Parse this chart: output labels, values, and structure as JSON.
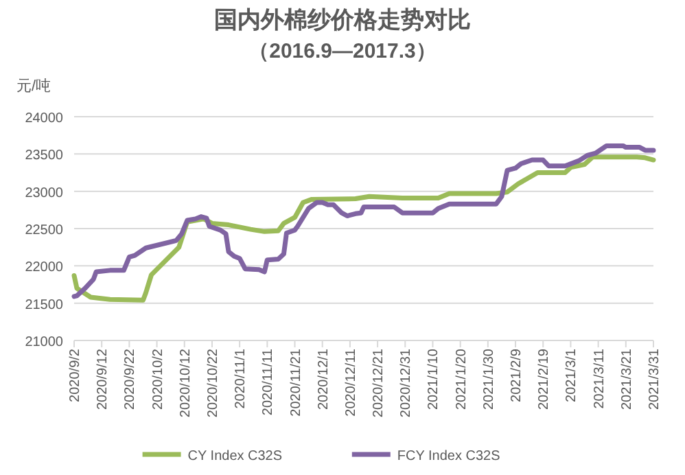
{
  "chart_data": {
    "type": "line",
    "title": "国内外棉纱价格走势对比",
    "subtitle": "（2016.9—2017.3）",
    "ylabel": "元/吨",
    "xlim": [
      "2020-09-02",
      "2021-03-31"
    ],
    "xticks": [
      {
        "value": "2020-09-02",
        "label": "2020/9/2"
      },
      {
        "value": "2020-09-12",
        "label": "2020/9/12"
      },
      {
        "value": "2020-09-22",
        "label": "2020/9/22"
      },
      {
        "value": "2020-10-02",
        "label": "2020/10/2"
      },
      {
        "value": "2020-10-12",
        "label": "2020/10/12"
      },
      {
        "value": "2020-10-22",
        "label": "2020/10/22"
      },
      {
        "value": "2020-11-01",
        "label": "2020/11/1"
      },
      {
        "value": "2020-11-11",
        "label": "2020/11/11"
      },
      {
        "value": "2020-11-21",
        "label": "2020/11/21"
      },
      {
        "value": "2020-12-01",
        "label": "2020/12/1"
      },
      {
        "value": "2020-12-11",
        "label": "2020/12/11"
      },
      {
        "value": "2020-12-21",
        "label": "2020/12/21"
      },
      {
        "value": "2020-12-31",
        "label": "2020/12/31"
      },
      {
        "value": "2021-01-10",
        "label": "2021/1/10"
      },
      {
        "value": "2021-01-20",
        "label": "2021/1/20"
      },
      {
        "value": "2021-01-30",
        "label": "2021/1/30"
      },
      {
        "value": "2021-02-09",
        "label": "2021/2/9"
      },
      {
        "value": "2021-02-19",
        "label": "2021/2/19"
      },
      {
        "value": "2021-03-01",
        "label": "2021/3/1"
      },
      {
        "value": "2021-03-11",
        "label": "2021/3/11"
      },
      {
        "value": "2021-03-21",
        "label": "2021/3/21"
      },
      {
        "value": "2021-03-31",
        "label": "2021/3/31"
      }
    ],
    "ylim": [
      21000,
      24000
    ],
    "yticks": [
      21000,
      21500,
      22000,
      22500,
      23000,
      23500,
      24000
    ],
    "grid": "y",
    "legend": "bottom",
    "marker": "none",
    "line_style": "solid",
    "series": [
      {
        "name": "CY Index C32S",
        "color": "#9bbb59",
        "x": [
          "2020-09-02",
          "2020-09-03",
          "2020-09-08",
          "2020-09-15",
          "2020-09-27",
          "2020-09-28",
          "2020-09-30",
          "2020-10-10",
          "2020-10-13",
          "2020-10-19",
          "2020-10-22",
          "2020-10-28",
          "2020-11-05",
          "2020-11-10",
          "2020-11-15",
          "2020-11-17",
          "2020-11-21",
          "2020-11-24",
          "2020-11-27",
          "2020-12-13",
          "2020-12-18",
          "2020-12-30",
          "2021-01-12",
          "2021-01-16",
          "2021-02-02",
          "2021-02-06",
          "2021-02-10",
          "2021-02-17",
          "2021-02-27",
          "2021-03-01",
          "2021-03-06",
          "2021-03-09",
          "2021-03-25",
          "2021-03-28",
          "2021-03-31"
        ],
        "values": [
          21870,
          21700,
          21580,
          21550,
          21540,
          21640,
          21880,
          22250,
          22590,
          22630,
          22570,
          22550,
          22490,
          22460,
          22470,
          22570,
          22650,
          22850,
          22890,
          22900,
          22930,
          22910,
          22910,
          22970,
          22970,
          22990,
          23100,
          23250,
          23250,
          23320,
          23360,
          23460,
          23460,
          23450,
          23420
        ]
      },
      {
        "name": "FCY Index C32S",
        "color": "#8064a2",
        "x": [
          "2020-09-02",
          "2020-09-03",
          "2020-09-06",
          "2020-09-09",
          "2020-09-10",
          "2020-09-15",
          "2020-09-20",
          "2020-09-22",
          "2020-09-24",
          "2020-09-28",
          "2020-10-09",
          "2020-10-11",
          "2020-10-13",
          "2020-10-16",
          "2020-10-18",
          "2020-10-20",
          "2020-10-21",
          "2020-10-25",
          "2020-10-27",
          "2020-10-28",
          "2020-10-30",
          "2020-11-01",
          "2020-11-03",
          "2020-11-08",
          "2020-11-10",
          "2020-11-11",
          "2020-11-15",
          "2020-11-17",
          "2020-11-18",
          "2020-11-21",
          "2020-11-22",
          "2020-11-26",
          "2020-11-29",
          "2020-12-01",
          "2020-12-03",
          "2020-12-05",
          "2020-12-08",
          "2020-12-10",
          "2020-12-13",
          "2020-12-15",
          "2020-12-16",
          "2020-12-27",
          "2020-12-30",
          "2021-01-10",
          "2021-01-12",
          "2021-01-16",
          "2021-02-02",
          "2021-02-04",
          "2021-02-06",
          "2021-02-09",
          "2021-02-11",
          "2021-02-15",
          "2021-02-19",
          "2021-02-21",
          "2021-02-27",
          "2021-03-04",
          "2021-03-07",
          "2021-03-10",
          "2021-03-14",
          "2021-03-20",
          "2021-03-21",
          "2021-03-26",
          "2021-03-28",
          "2021-03-31"
        ],
        "values": [
          21590,
          21600,
          21700,
          21820,
          21920,
          21940,
          21940,
          22120,
          22140,
          22240,
          22340,
          22430,
          22610,
          22630,
          22660,
          22640,
          22530,
          22480,
          22430,
          22190,
          22130,
          22100,
          21960,
          21950,
          21920,
          22080,
          22090,
          22160,
          22440,
          22480,
          22530,
          22770,
          22850,
          22850,
          22820,
          22820,
          22710,
          22670,
          22700,
          22710,
          22790,
          22790,
          22710,
          22710,
          22770,
          22830,
          22830,
          22930,
          23280,
          23310,
          23370,
          23420,
          23420,
          23340,
          23340,
          23410,
          23480,
          23510,
          23610,
          23610,
          23590,
          23590,
          23550,
          23550
        ]
      }
    ]
  }
}
